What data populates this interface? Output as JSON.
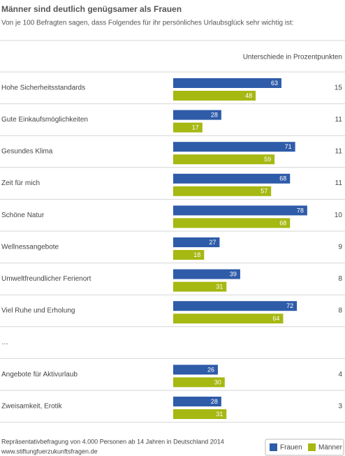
{
  "chart_data": {
    "type": "bar",
    "title": "Männer sind deutlich genügsamer als Frauen",
    "subtitle": "Von je 100 Befragten sagen, dass Folgendes für ihr persönliches Urlaubsglück sehr wichtig ist:",
    "difference_label": "Unterschiede in Prozentpunkten",
    "categories": [
      "Hohe Sicherheitsstandards",
      "Gute Einkaufsmöglichkeiten",
      "Gesundes Klima",
      "Zeit für mich",
      "Schöne Natur",
      "Wellnessangebote",
      "Umweltfreundlicher Ferienort",
      "Viel Ruhe und Erholung",
      "…",
      "Angebote für Aktivurlaub",
      "Zweisamkeit, Erotik"
    ],
    "series": [
      {
        "name": "Frauen",
        "color": "#2f5ca9",
        "values": [
          63,
          28,
          71,
          68,
          78,
          27,
          39,
          72,
          null,
          26,
          28
        ]
      },
      {
        "name": "Männer",
        "color": "#a6b812",
        "values": [
          48,
          17,
          59,
          57,
          68,
          18,
          31,
          64,
          null,
          30,
          31
        ]
      }
    ],
    "differences": [
      15,
      11,
      11,
      11,
      10,
      9,
      8,
      8,
      null,
      4,
      3
    ],
    "xlim": [
      0,
      100
    ],
    "source": [
      "Repräsentativbefragung von 4.000 Personen ab 14 Jahren in Deutschland 2014",
      "www.stiftungfuerzukunftsfragen.de"
    ],
    "legend": "bottom-right"
  }
}
